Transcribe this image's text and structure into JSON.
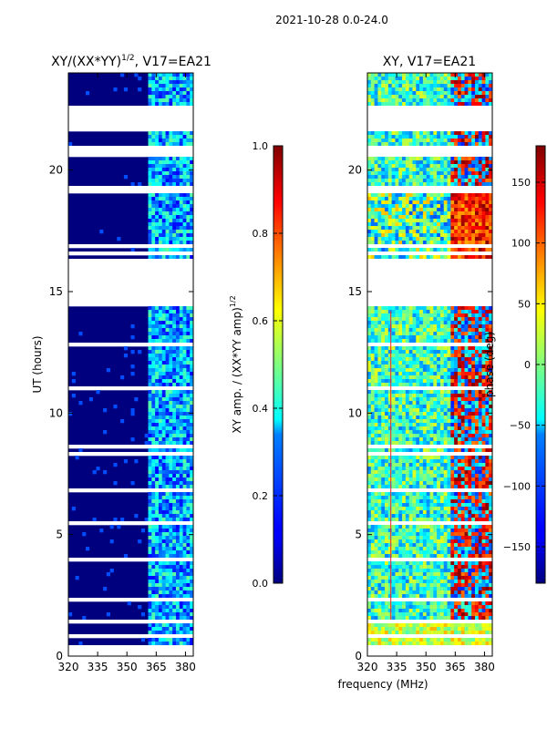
{
  "suptitle": "2021-10-28 0.0-24.0",
  "common_xlabel": "frequency (MHz)",
  "chart_data": [
    {
      "type": "heatmap",
      "title": "XY/(XX*YY)^1/2, V17=EA21",
      "title_main": "XY/(XX*YY)",
      "title_sup": "1/2",
      "title_tail": ", V17=EA21",
      "xlabel": "frequency (MHz)",
      "ylabel": "UT (hours)",
      "xlim": [
        320,
        384
      ],
      "ylim": [
        0,
        24
      ],
      "xticks": [
        320,
        335,
        350,
        365,
        380
      ],
      "yticks": [
        0,
        5,
        10,
        15,
        20
      ],
      "colormap": "jet",
      "colorbar": {
        "label_main": "XY amp. / (XX*YY amp)",
        "label_sup": "1/2",
        "range": [
          0.0,
          1.0
        ],
        "ticks": [
          "0.0",
          "0.2",
          "0.4",
          "0.6",
          "0.8",
          "1.0"
        ],
        "tick_values": [
          0.0,
          0.2,
          0.4,
          0.6,
          0.8,
          1.0
        ]
      },
      "data_gaps_hours": [
        [
          0.0,
          0.3
        ],
        [
          1.3,
          1.55
        ],
        [
          22.6,
          21.65
        ],
        [
          19.05,
          19.3
        ],
        [
          20.5,
          20.8
        ],
        [
          16.1,
          16.4
        ],
        [
          14.6,
          16.05
        ]
      ],
      "active_band_mhz": [
        361,
        382
      ]
    },
    {
      "type": "heatmap",
      "title": "XY, V17=EA21",
      "xlabel": "frequency (MHz)",
      "ylabel": "",
      "xlim": [
        320,
        384
      ],
      "ylim": [
        0,
        24
      ],
      "xticks": [
        320,
        335,
        350,
        365,
        380
      ],
      "yticks": [
        0,
        5,
        10,
        15,
        20
      ],
      "colormap": "jet",
      "colorbar": {
        "label": "phase (deg)",
        "range": [
          -180,
          180
        ],
        "ticks": [
          "−150",
          "−100",
          "−50",
          "0",
          "50",
          "100",
          "150"
        ],
        "tick_values": [
          -150,
          -100,
          -50,
          0,
          50,
          100,
          150
        ]
      },
      "data_gaps_hours": [
        [
          0.0,
          0.3
        ],
        [
          1.3,
          1.55
        ],
        [
          22.6,
          21.65
        ],
        [
          19.05,
          19.3
        ],
        [
          20.5,
          20.8
        ],
        [
          16.1,
          16.4
        ],
        [
          14.6,
          16.05
        ]
      ]
    }
  ]
}
